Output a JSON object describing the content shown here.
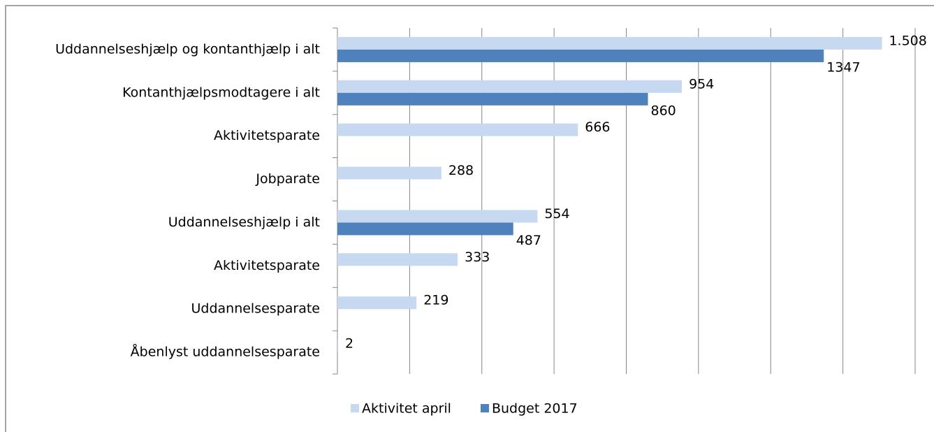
{
  "chart_data": {
    "type": "bar",
    "orientation": "horizontal",
    "categories": [
      "Uddannelseshjælp og kontanthjælp i alt",
      "Kontanthjælpsmodtagere i alt",
      "Aktivitetsparate",
      "Jobparate",
      "Uddannelseshjælp i alt",
      "Aktivitetsparate",
      "Uddannelsesparate",
      "Åbenlyst uddannelsesparate"
    ],
    "series": [
      {
        "name": "Aktivitet april",
        "color": "#c6d9f1",
        "values": [
          1508,
          954,
          666,
          288,
          554,
          333,
          219,
          2
        ],
        "value_labels": [
          "1.508",
          "954",
          "666",
          "288",
          "554",
          "333",
          "219",
          "2"
        ]
      },
      {
        "name": "Budget 2017",
        "color": "#4f81bd",
        "values": [
          1347,
          860,
          null,
          null,
          487,
          null,
          null,
          null
        ]
      }
    ],
    "xlim": [
      0,
      1600
    ],
    "xticks": [
      0,
      200,
      400,
      600,
      800,
      1000,
      1200,
      1400,
      1600
    ],
    "grid": true,
    "legend": "bottom"
  }
}
